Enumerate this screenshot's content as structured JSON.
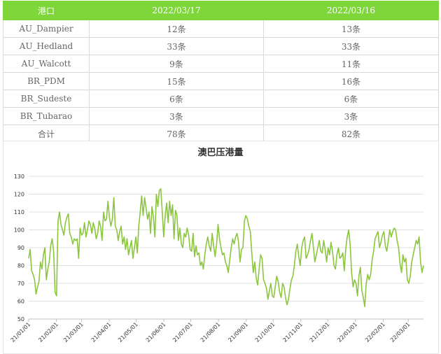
{
  "table": {
    "headers": [
      "港口",
      "2022/03/17",
      "2022/03/16"
    ],
    "rows": [
      [
        "AU_Dampier",
        "12条",
        "13条"
      ],
      [
        "AU_Hedland",
        "33条",
        "33条"
      ],
      [
        "AU_Walcott",
        "9条",
        "11条"
      ],
      [
        "BR_PDM",
        "15条",
        "16条"
      ],
      [
        "BR_Sudeste",
        "6条",
        "6条"
      ],
      [
        "BR_Tubarao",
        "3条",
        "3条"
      ],
      [
        "合计",
        "78条",
        "82条"
      ]
    ]
  },
  "chart_data": {
    "type": "line",
    "title": "澳巴压港量",
    "xlabel": "",
    "ylabel": "",
    "ylim": [
      50,
      130
    ],
    "yticks": [
      50,
      60,
      70,
      80,
      90,
      100,
      110,
      120,
      130
    ],
    "grid": true,
    "color": "#8cc63f",
    "x_ticks": [
      "21/01/01",
      "21/02/01",
      "21/03/01",
      "21/04/01",
      "21/05/01",
      "21/06/01",
      "21/07/01",
      "21/08/01",
      "21/09/01",
      "21/10/01",
      "21/11/01",
      "21/12/01",
      "22/01/01",
      "22/02/01",
      "22/03/01"
    ],
    "x_start": "2021-01-01",
    "series": [
      {
        "values": [
          84,
          89,
          77,
          75,
          72,
          64,
          68,
          71,
          82,
          78,
          86,
          90,
          72,
          78,
          82,
          91,
          95,
          88,
          65,
          63,
          105,
          110,
          103,
          100,
          97,
          104,
          107,
          109,
          98,
          96,
          92,
          95,
          94,
          95,
          84,
          101,
          97,
          98,
          104,
          96,
          100,
          105,
          103,
          98,
          104,
          101,
          95,
          98,
          105,
          102,
          94,
          110,
          105,
          106,
          116,
          107,
          102,
          106,
          118,
          102,
          100,
          94,
          99,
          102,
          92,
          96,
          89,
          95,
          86,
          90,
          94,
          84,
          90,
          96,
          87,
          102,
          110,
          119,
          108,
          118,
          112,
          106,
          110,
          98,
          113,
          107,
          96,
          120,
          113,
          122,
          123,
          110,
          96,
          108,
          115,
          104,
          116,
          108,
          114,
          95,
          111,
          108,
          94,
          101,
          92,
          90,
          98,
          96,
          101,
          97,
          89,
          88,
          98,
          85,
          91,
          86,
          87,
          80,
          82,
          78,
          86,
          92,
          96,
          91,
          88,
          98,
          91,
          85,
          92,
          103,
          95,
          90,
          86,
          87,
          82,
          80,
          76,
          83,
          90,
          95,
          92,
          96,
          98,
          93,
          82,
          89,
          90,
          105,
          108,
          106,
          102,
          99,
          87,
          76,
          82,
          73,
          69,
          78,
          86,
          84,
          72,
          70,
          67,
          61,
          66,
          70,
          63,
          62,
          68,
          74,
          71,
          65,
          62,
          70,
          68,
          62,
          58,
          61,
          67,
          72,
          74,
          80,
          88,
          92,
          85,
          80,
          90,
          94,
          96,
          84,
          86,
          89,
          94,
          98,
          90,
          82,
          86,
          90,
          94,
          88,
          87,
          94,
          89,
          82,
          90,
          86,
          93,
          88,
          80,
          78,
          86,
          90,
          84,
          85,
          87,
          77,
          89,
          96,
          100,
          92,
          76,
          68,
          72,
          70,
          63,
          74,
          79,
          66,
          62,
          57,
          70,
          75,
          72,
          75,
          83,
          88,
          95,
          97,
          99,
          90,
          93,
          97,
          99,
          91,
          88,
          94,
          100,
          96,
          99,
          101,
          100,
          94,
          90,
          81,
          76,
          86,
          82,
          84,
          72,
          70,
          74,
          82,
          86,
          90,
          94,
          92,
          96,
          82,
          76,
          80
        ]
      }
    ]
  }
}
